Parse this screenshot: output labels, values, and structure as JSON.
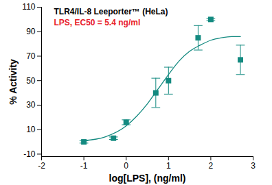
{
  "chart_data": {
    "type": "scatter",
    "title": "TLR4/IL-8 Leeporter™ (HeLa)",
    "subtitle": "LPS, EC50 = 5.4 ng/ml",
    "x_label": "log[LPS], (ng/ml)",
    "y_label": "% Activity",
    "xlim": [
      -2,
      3
    ],
    "xticks": [
      -2,
      -1,
      0,
      1,
      2,
      3
    ],
    "ylim": [
      -12,
      110
    ],
    "yticks": [
      -10,
      10,
      30,
      50,
      70,
      90,
      110
    ],
    "grid": false,
    "series": [
      {
        "type": "scatter",
        "color": "#138a80",
        "marker": "square",
        "x": [
          -1,
          -0.3,
          0,
          0.7,
          1,
          1.7,
          2,
          2.7
        ],
        "values": [
          0,
          3,
          16,
          40,
          50,
          85,
          100,
          67
        ],
        "errors": [
          1,
          1,
          2,
          12,
          11,
          10,
          1,
          12
        ]
      },
      {
        "type": "line",
        "color": "#138a80",
        "line_style": "solid",
        "x": [
          -1,
          -0.5,
          0,
          0.25,
          0.5,
          0.75,
          1,
          1.25,
          1.5,
          1.75,
          2,
          2.25,
          2.5,
          2.7
        ],
        "values": [
          1,
          4,
          13,
          21,
          31,
          43,
          55,
          66,
          74,
          79,
          83,
          85,
          86,
          86
        ]
      }
    ]
  }
}
